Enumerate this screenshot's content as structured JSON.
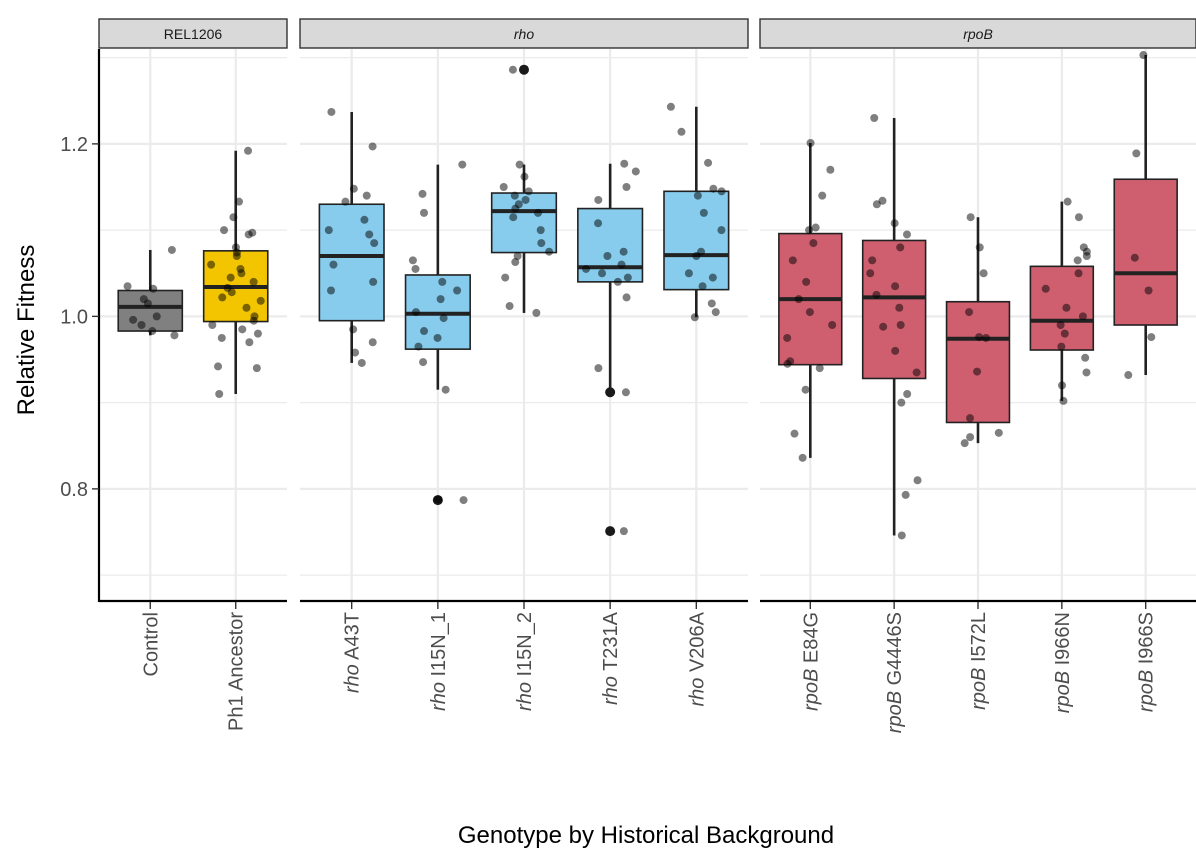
{
  "chart_data": {
    "type": "boxplot",
    "ylabel": "Relative Fitness",
    "xlabel": "Genotype by Historical Background",
    "ylim": [
      0.67,
      1.31
    ],
    "yticks": [
      0.8,
      1.0,
      1.2
    ],
    "yticklabels": [
      "0.8",
      "1.0",
      "1.2"
    ],
    "grid": true,
    "colors": {
      "REL1206": "#808080",
      "Ph1": "#f2c500",
      "rho": "#87ccec",
      "rpoB": "#cf5f6f",
      "point": "#000000"
    },
    "panels": [
      {
        "strip": {
          "plain": "REL1206",
          "italic": ""
        },
        "groups": [
          {
            "label": {
              "italic": "",
              "plain": "Control"
            },
            "fill": "#808080",
            "q1": 0.983,
            "median": 1.011,
            "q3": 1.03,
            "whisker_low": 0.978,
            "whisker_high": 1.077,
            "outliers": [],
            "points": [
              1.077,
              1.035,
              1.032,
              1.02,
              1.015,
              1.0,
              0.996,
              0.99,
              0.983,
              0.978
            ]
          },
          {
            "label": {
              "italic": "",
              "plain": "Ph1 Ancestor"
            },
            "fill": "#f2c500",
            "q1": 0.994,
            "median": 1.034,
            "q3": 1.076,
            "whisker_low": 0.91,
            "whisker_high": 1.192,
            "outliers": [],
            "points": [
              1.192,
              1.133,
              1.115,
              1.1,
              1.097,
              1.095,
              1.08,
              1.074,
              1.07,
              1.06,
              1.055,
              1.05,
              1.045,
              1.04,
              1.033,
              1.028,
              1.022,
              1.018,
              1.01,
              1.0,
              0.995,
              0.99,
              0.985,
              0.98,
              0.975,
              0.97,
              0.942,
              0.94,
              0.91
            ]
          }
        ]
      },
      {
        "strip": {
          "plain": "",
          "italic": "rho"
        },
        "groups": [
          {
            "label": {
              "italic": "rho",
              "plain": " A43T"
            },
            "fill": "#87ccec",
            "q1": 0.995,
            "median": 1.07,
            "q3": 1.13,
            "whisker_low": 0.946,
            "whisker_high": 1.237,
            "outliers": [],
            "points": [
              1.237,
              1.197,
              1.148,
              1.14,
              1.133,
              1.112,
              1.1,
              1.095,
              1.085,
              1.06,
              1.04,
              1.03,
              0.985,
              0.97,
              0.958,
              0.946
            ]
          },
          {
            "label": {
              "italic": "rho",
              "plain": " I15N_1"
            },
            "fill": "#87ccec",
            "q1": 0.962,
            "median": 1.003,
            "q3": 1.048,
            "whisker_low": 0.915,
            "whisker_high": 1.176,
            "outliers": [
              0.787
            ],
            "points": [
              1.176,
              1.142,
              1.12,
              1.065,
              1.055,
              1.04,
              1.03,
              1.02,
              1.005,
              0.998,
              0.983,
              0.975,
              0.965,
              0.947,
              0.915,
              0.788,
              0.787
            ]
          },
          {
            "label": {
              "italic": "rho",
              "plain": " I15N_2"
            },
            "fill": "#87ccec",
            "q1": 1.074,
            "median": 1.122,
            "q3": 1.143,
            "whisker_low": 1.004,
            "whisker_high": 1.176,
            "outliers": [
              1.286
            ],
            "points": [
              1.286,
              1.176,
              1.162,
              1.15,
              1.145,
              1.14,
              1.135,
              1.13,
              1.125,
              1.12,
              1.115,
              1.1,
              1.085,
              1.075,
              1.07,
              1.063,
              1.045,
              1.012,
              1.004
            ]
          },
          {
            "label": {
              "italic": "rho",
              "plain": " T231A"
            },
            "fill": "#87ccec",
            "q1": 1.04,
            "median": 1.057,
            "q3": 1.125,
            "whisker_low": 0.912,
            "whisker_high": 1.177,
            "outliers": [
              0.912,
              0.751
            ],
            "points": [
              1.177,
              1.168,
              1.15,
              1.135,
              1.108,
              1.075,
              1.07,
              1.06,
              1.055,
              1.05,
              1.045,
              1.04,
              1.022,
              0.94,
              0.912,
              0.751
            ]
          },
          {
            "label": {
              "italic": "rho",
              "plain": " V206A"
            },
            "fill": "#87ccec",
            "q1": 1.031,
            "median": 1.071,
            "q3": 1.145,
            "whisker_low": 0.999,
            "whisker_high": 1.243,
            "outliers": [],
            "points": [
              1.243,
              1.214,
              1.178,
              1.148,
              1.145,
              1.14,
              1.12,
              1.1,
              1.075,
              1.07,
              1.05,
              1.045,
              1.035,
              1.015,
              1.005,
              0.999
            ]
          }
        ]
      },
      {
        "strip": {
          "plain": "",
          "italic": "rpoB"
        },
        "groups": [
          {
            "label": {
              "italic": "rpoB",
              "plain": " E84G"
            },
            "fill": "#cf5f6f",
            "q1": 0.944,
            "median": 1.02,
            "q3": 1.096,
            "whisker_low": 0.836,
            "whisker_high": 1.201,
            "outliers": [],
            "points": [
              1.201,
              1.17,
              1.14,
              1.103,
              1.1,
              1.085,
              1.065,
              1.04,
              1.02,
              1.005,
              0.99,
              0.975,
              0.948,
              0.945,
              0.94,
              0.915,
              0.864,
              0.836
            ]
          },
          {
            "label": {
              "italic": "rpoB",
              "plain": " G4446S"
            },
            "fill": "#cf5f6f",
            "q1": 0.928,
            "median": 1.022,
            "q3": 1.088,
            "whisker_low": 0.746,
            "whisker_high": 1.23,
            "outliers": [],
            "points": [
              1.23,
              1.134,
              1.13,
              1.108,
              1.095,
              1.08,
              1.065,
              1.05,
              1.035,
              1.025,
              1.01,
              0.99,
              0.988,
              0.96,
              0.935,
              0.91,
              0.9,
              0.81,
              0.793,
              0.746
            ]
          },
          {
            "label": {
              "italic": "rpoB",
              "plain": " I572L"
            },
            "fill": "#cf5f6f",
            "q1": 0.877,
            "median": 0.974,
            "q3": 1.017,
            "whisker_low": 0.853,
            "whisker_high": 1.115,
            "outliers": [],
            "points": [
              1.115,
              1.08,
              1.05,
              1.005,
              0.976,
              0.975,
              0.936,
              0.882,
              0.865,
              0.86,
              0.853
            ]
          },
          {
            "label": {
              "italic": "rpoB",
              "plain": " I966N"
            },
            "fill": "#cf5f6f",
            "q1": 0.961,
            "median": 0.995,
            "q3": 1.058,
            "whisker_low": 0.902,
            "whisker_high": 1.133,
            "outliers": [],
            "points": [
              1.133,
              1.115,
              1.08,
              1.075,
              1.07,
              1.065,
              1.05,
              1.032,
              1.01,
              1.0,
              0.99,
              0.98,
              0.965,
              0.952,
              0.935,
              0.92,
              0.902
            ]
          },
          {
            "label": {
              "italic": "rpoB",
              "plain": " I966S"
            },
            "fill": "#cf5f6f",
            "q1": 0.99,
            "median": 1.05,
            "q3": 1.159,
            "whisker_low": 0.932,
            "whisker_high": 1.303,
            "outliers": [],
            "points": [
              1.303,
              1.189,
              1.068,
              1.03,
              0.976,
              0.932
            ]
          }
        ]
      }
    ]
  }
}
